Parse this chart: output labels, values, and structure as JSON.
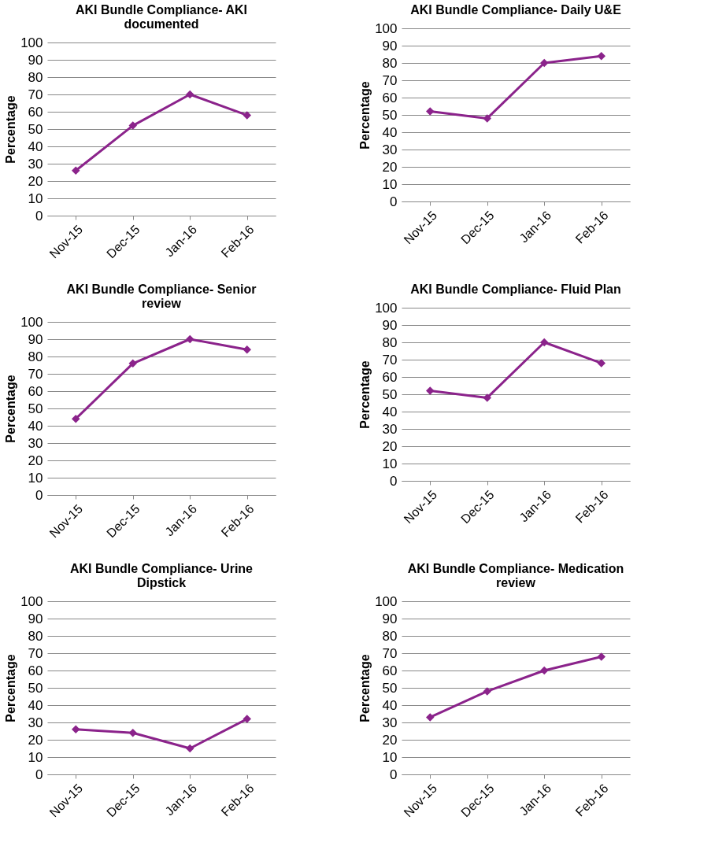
{
  "chart_data": [
    {
      "type": "line",
      "title": "AKI Bundle Compliance- AKI documented",
      "ylabel": "Percentage",
      "categories": [
        "Nov-15",
        "Dec-15",
        "Jan-16",
        "Feb-16"
      ],
      "series": [
        {
          "color": "#8b238b",
          "values": [
            26,
            52,
            70,
            58
          ]
        }
      ],
      "ylim": [
        0,
        100
      ],
      "yticks": [
        0,
        10,
        20,
        30,
        40,
        50,
        60,
        70,
        80,
        90,
        100
      ],
      "grid": "y",
      "marker": "diamond"
    },
    {
      "type": "line",
      "title": "AKI Bundle Compliance-  Daily U&E",
      "ylabel": "Percentage",
      "categories": [
        "Nov-15",
        "Dec-15",
        "Jan-16",
        "Feb-16"
      ],
      "series": [
        {
          "color": "#8b238b",
          "values": [
            52,
            48,
            80,
            84
          ]
        }
      ],
      "ylim": [
        0,
        100
      ],
      "yticks": [
        0,
        10,
        20,
        30,
        40,
        50,
        60,
        70,
        80,
        90,
        100
      ],
      "grid": "y",
      "marker": "diamond"
    },
    {
      "type": "line",
      "title": "AKI Bundle Compliance- Senior review",
      "ylabel": "Percentage",
      "categories": [
        "Nov-15",
        "Dec-15",
        "Jan-16",
        "Feb-16"
      ],
      "series": [
        {
          "color": "#8b238b",
          "values": [
            44,
            76,
            90,
            84
          ]
        }
      ],
      "ylim": [
        0,
        100
      ],
      "yticks": [
        0,
        10,
        20,
        30,
        40,
        50,
        60,
        70,
        80,
        90,
        100
      ],
      "grid": "y",
      "marker": "diamond"
    },
    {
      "type": "line",
      "title": "AKI Bundle Compliance- Fluid Plan",
      "ylabel": "Percentage",
      "categories": [
        "Nov-15",
        "Dec-15",
        "Jan-16",
        "Feb-16"
      ],
      "series": [
        {
          "color": "#8b238b",
          "values": [
            52,
            48,
            80,
            68
          ]
        }
      ],
      "ylim": [
        0,
        100
      ],
      "yticks": [
        0,
        10,
        20,
        30,
        40,
        50,
        60,
        70,
        80,
        90,
        100
      ],
      "grid": "y",
      "marker": "diamond"
    },
    {
      "type": "line",
      "title": "AKI Bundle Compliance-  Urine Dipstick",
      "ylabel": "Percentage",
      "categories": [
        "Nov-15",
        "Dec-15",
        "Jan-16",
        "Feb-16"
      ],
      "series": [
        {
          "color": "#8b238b",
          "values": [
            26,
            24,
            15,
            32
          ]
        }
      ],
      "ylim": [
        0,
        100
      ],
      "yticks": [
        0,
        10,
        20,
        30,
        40,
        50,
        60,
        70,
        80,
        90,
        100
      ],
      "grid": "y",
      "marker": "diamond"
    },
    {
      "type": "line",
      "title": "AKI Bundle Compliance- Medication review",
      "ylabel": "Percentage",
      "categories": [
        "Nov-15",
        "Dec-15",
        "Jan-16",
        "Feb-16"
      ],
      "series": [
        {
          "color": "#8b238b",
          "values": [
            33,
            48,
            60,
            68
          ]
        }
      ],
      "ylim": [
        0,
        100
      ],
      "yticks": [
        0,
        10,
        20,
        30,
        40,
        50,
        60,
        70,
        80,
        90,
        100
      ],
      "grid": "y",
      "marker": "diamond"
    }
  ]
}
